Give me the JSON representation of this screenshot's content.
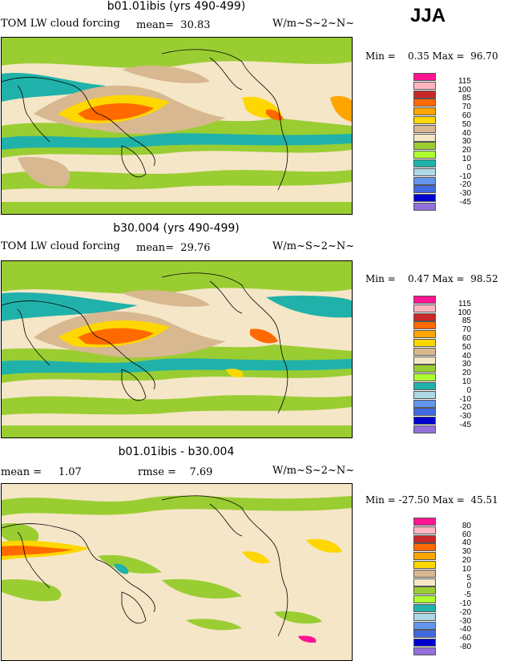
{
  "season": "JJA",
  "panels": [
    {
      "title": "b01.01ibis (yrs 490-499)",
      "left_label": "TOM LW cloud forcing",
      "stat1": "mean=  30.83",
      "stat2": "",
      "units": "W/m~S~2~N~",
      "minmax": "Min =    0.35 Max =  96.70",
      "levels": [
        "115",
        "100",
        "85",
        "70",
        "60",
        "50",
        "40",
        "30",
        "20",
        "10",
        "0",
        "-10",
        "-20",
        "-30",
        "-45"
      ],
      "colors": [
        "#ff1493",
        "#ffb6c1",
        "#c82828",
        "#ff6a00",
        "#ffa500",
        "#ffd700",
        "#d8b890",
        "#f5e6c8",
        "#9acd32",
        "#adff2f",
        "#20b2aa",
        "#add8e6",
        "#6495ed",
        "#4169e1",
        "#0000cd",
        "#9370db"
      ]
    },
    {
      "title": "b30.004 (yrs 490-499)",
      "left_label": "TOM LW cloud forcing",
      "stat1": "mean=  29.76",
      "stat2": "",
      "units": "W/m~S~2~N~",
      "minmax": "Min =    0.47 Max =  98.52",
      "levels": [
        "115",
        "100",
        "85",
        "70",
        "60",
        "50",
        "40",
        "30",
        "20",
        "10",
        "0",
        "-10",
        "-20",
        "-30",
        "-45"
      ],
      "colors": [
        "#ff1493",
        "#ffb6c1",
        "#c82828",
        "#ff6a00",
        "#ffa500",
        "#ffd700",
        "#d8b890",
        "#f5e6c8",
        "#9acd32",
        "#adff2f",
        "#20b2aa",
        "#add8e6",
        "#6495ed",
        "#4169e1",
        "#0000cd",
        "#9370db"
      ]
    },
    {
      "title": "b01.01ibis - b30.004",
      "left_label": "mean =     1.07",
      "stat1": "rmse =    7.69",
      "stat2": "",
      "units": "W/m~S~2~N~",
      "minmax": "Min = -27.50 Max =  45.51",
      "levels": [
        "80",
        "60",
        "40",
        "30",
        "20",
        "10",
        "5",
        "0",
        "-5",
        "-10",
        "-20",
        "-30",
        "-40",
        "-60",
        "-80"
      ],
      "colors": [
        "#ff1493",
        "#ffb6c1",
        "#c82828",
        "#ff6a00",
        "#ffa500",
        "#ffd700",
        "#d8b890",
        "#f5e6c8",
        "#9acd32",
        "#adff2f",
        "#20b2aa",
        "#add8e6",
        "#6495ed",
        "#4169e1",
        "#0000cd",
        "#9370db"
      ]
    }
  ]
}
